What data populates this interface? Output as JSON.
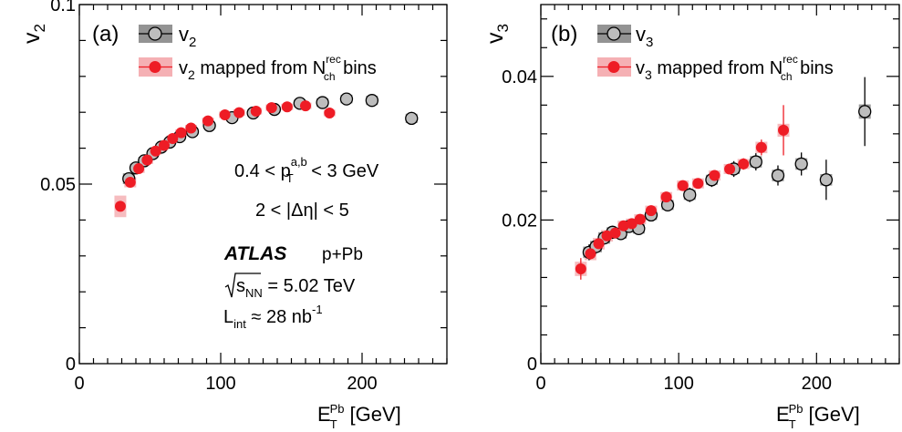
{
  "chart_data": [
    {
      "type": "scatter",
      "panel_label": "(a)",
      "ylabel": "v",
      "ylabel_sub": "2",
      "xlabel": "E",
      "xlabel_sup": "Pb",
      "xlabel_sub": "T",
      "xlabel_unit": "[GeV]",
      "xlim": [
        0,
        260
      ],
      "ylim": [
        0,
        0.1
      ],
      "xticks": [
        0,
        100,
        200
      ],
      "yticks": [
        0,
        0.05,
        0.1
      ],
      "ytick_labels": [
        "0",
        "0.05",
        "0.1"
      ],
      "legend": {
        "position": "top-left",
        "series1_main": "v",
        "series1_sub": "2",
        "series2_main": "v",
        "series2_sub": "2",
        "series2_text": " mapped from N",
        "series2_sup": "rec",
        "series2_sub2": "ch",
        "series2_tail": " bins"
      },
      "annotations": {
        "pt_prefix": "0.4 < p",
        "pt_sup": "a,b",
        "pt_sub": "T",
        "pt_suffix": " < 3 GeV",
        "eta_text": "2 < |Δη| < 5",
        "atlas": "ATLAS",
        "system": "p+Pb",
        "energy_sub": "NN",
        "energy_value": " = 5.02 TeV",
        "energy_var": "s",
        "lumi_prefix": "L",
        "lumi_sub": "int",
        "lumi_value": " ≈ 28 nb",
        "lumi_sup": "-1"
      },
      "series": [
        {
          "name": "v2",
          "marker": "open-circle",
          "color": "#000000",
          "band_color": "#808080",
          "points": [
            {
              "x": 35,
              "y": 0.0515,
              "err": 0.0012,
              "sys": 0.0015
            },
            {
              "x": 40,
              "y": 0.0545,
              "err": 0.001,
              "sys": 0.0012
            },
            {
              "x": 46,
              "y": 0.0565,
              "err": 0.0008,
              "sys": 0.0011
            },
            {
              "x": 52,
              "y": 0.0585,
              "err": 0.0008,
              "sys": 0.001
            },
            {
              "x": 58,
              "y": 0.0603,
              "err": 0.0007,
              "sys": 0.001
            },
            {
              "x": 64,
              "y": 0.0617,
              "err": 0.0007,
              "sys": 0.0009
            },
            {
              "x": 71,
              "y": 0.0632,
              "err": 0.0007,
              "sys": 0.0009
            },
            {
              "x": 80,
              "y": 0.0646,
              "err": 0.0007,
              "sys": 0.0009
            },
            {
              "x": 92,
              "y": 0.0663,
              "err": 0.0007,
              "sys": 0.0009
            },
            {
              "x": 108,
              "y": 0.0685,
              "err": 0.0007,
              "sys": 0.0009
            },
            {
              "x": 123,
              "y": 0.0698,
              "err": 0.0008,
              "sys": 0.0009
            },
            {
              "x": 138,
              "y": 0.0708,
              "err": 0.0008,
              "sys": 0.0009
            },
            {
              "x": 156,
              "y": 0.0725,
              "err": 0.0008,
              "sys": 0.001
            },
            {
              "x": 172,
              "y": 0.0727,
              "err": 0.001,
              "sys": 0.0012
            },
            {
              "x": 189,
              "y": 0.0737,
              "err": 0.0012,
              "sys": 0.0012
            },
            {
              "x": 207,
              "y": 0.0733,
              "err": 0.0013,
              "sys": 0.0013
            },
            {
              "x": 235,
              "y": 0.0683,
              "err": 0.0018,
              "sys": 0.0013
            }
          ]
        },
        {
          "name": "v2 mapped from Nch rec bins",
          "marker": "filled-circle",
          "color": "#ee1c25",
          "band_color": "#f5b0b4",
          "points": [
            {
              "x": 29,
              "y": 0.0438,
              "err": 0.0006,
              "sys": 0.003
            },
            {
              "x": 36,
              "y": 0.0505,
              "err": 0.0005,
              "sys": 0.0014
            },
            {
              "x": 42,
              "y": 0.0543,
              "err": 0.0005,
              "sys": 0.0012
            },
            {
              "x": 48,
              "y": 0.0567,
              "err": 0.0005,
              "sys": 0.0011
            },
            {
              "x": 54,
              "y": 0.0592,
              "err": 0.0005,
              "sys": 0.001
            },
            {
              "x": 60,
              "y": 0.0608,
              "err": 0.0005,
              "sys": 0.001
            },
            {
              "x": 66,
              "y": 0.0627,
              "err": 0.0005,
              "sys": 0.0009
            },
            {
              "x": 72,
              "y": 0.0643,
              "err": 0.0005,
              "sys": 0.0009
            },
            {
              "x": 79,
              "y": 0.0656,
              "err": 0.0005,
              "sys": 0.0009
            },
            {
              "x": 91,
              "y": 0.0676,
              "err": 0.0005,
              "sys": 0.0009
            },
            {
              "x": 103,
              "y": 0.0693,
              "err": 0.0005,
              "sys": 0.0009
            },
            {
              "x": 113,
              "y": 0.0699,
              "err": 0.0005,
              "sys": 0.0009
            },
            {
              "x": 125,
              "y": 0.0703,
              "err": 0.0005,
              "sys": 0.0009
            },
            {
              "x": 136,
              "y": 0.0713,
              "err": 0.0006,
              "sys": 0.0009
            },
            {
              "x": 147,
              "y": 0.0715,
              "err": 0.0006,
              "sys": 0.0009
            },
            {
              "x": 160,
              "y": 0.0718,
              "err": 0.0008,
              "sys": 0.0009
            },
            {
              "x": 177,
              "y": 0.0698,
              "err": 0.0009,
              "sys": 0.0009
            }
          ]
        }
      ]
    },
    {
      "type": "scatter",
      "panel_label": "(b)",
      "ylabel": "v",
      "ylabel_sub": "3",
      "xlabel": "E",
      "xlabel_sup": "Pb",
      "xlabel_sub": "T",
      "xlabel_unit": "[GeV]",
      "xlim": [
        0,
        260
      ],
      "ylim": [
        0,
        0.05
      ],
      "xticks": [
        0,
        100,
        200
      ],
      "yticks": [
        0,
        0.02,
        0.04
      ],
      "ytick_labels": [
        "0",
        "0.02",
        "0.04"
      ],
      "legend": {
        "position": "top-left",
        "series1_main": "v",
        "series1_sub": "3",
        "series2_main": "v",
        "series2_sub": "3",
        "series2_text": " mapped from N",
        "series2_sup": "rec",
        "series2_sub2": "ch",
        "series2_tail": " bins"
      },
      "series": [
        {
          "name": "v3",
          "marker": "open-circle",
          "color": "#000000",
          "band_color": "#808080",
          "points": [
            {
              "x": 35,
              "y": 0.0155,
              "err": 0.0011,
              "sys": 0.0008
            },
            {
              "x": 40,
              "y": 0.0163,
              "err": 0.001,
              "sys": 0.0008
            },
            {
              "x": 46,
              "y": 0.0175,
              "err": 0.0009,
              "sys": 0.0008
            },
            {
              "x": 52,
              "y": 0.0183,
              "err": 0.0009,
              "sys": 0.0007
            },
            {
              "x": 58,
              "y": 0.0181,
              "err": 0.0009,
              "sys": 0.0007
            },
            {
              "x": 64,
              "y": 0.0191,
              "err": 0.0009,
              "sys": 0.0007
            },
            {
              "x": 71,
              "y": 0.0188,
              "err": 0.0009,
              "sys": 0.0007
            },
            {
              "x": 80,
              "y": 0.0207,
              "err": 0.0009,
              "sys": 0.0007
            },
            {
              "x": 92,
              "y": 0.0221,
              "err": 0.0009,
              "sys": 0.0007
            },
            {
              "x": 108,
              "y": 0.0235,
              "err": 0.001,
              "sys": 0.0007
            },
            {
              "x": 124,
              "y": 0.0256,
              "err": 0.001,
              "sys": 0.0007
            },
            {
              "x": 140,
              "y": 0.0271,
              "err": 0.0011,
              "sys": 0.0007
            },
            {
              "x": 156,
              "y": 0.0281,
              "err": 0.0012,
              "sys": 0.0008
            },
            {
              "x": 172,
              "y": 0.0262,
              "err": 0.0014,
              "sys": 0.0008
            },
            {
              "x": 189,
              "y": 0.0278,
              "err": 0.0016,
              "sys": 0.0008
            },
            {
              "x": 207,
              "y": 0.0256,
              "err": 0.0028,
              "sys": 0.0008
            },
            {
              "x": 235,
              "y": 0.0351,
              "err": 0.0048,
              "sys": 0.001
            }
          ]
        },
        {
          "name": "v3 mapped from Nch rec bins",
          "marker": "filled-circle",
          "color": "#ee1c25",
          "band_color": "#f5b0b4",
          "points": [
            {
              "x": 29,
              "y": 0.0132,
              "err": 0.0015,
              "sys": 0.001
            },
            {
              "x": 36,
              "y": 0.0153,
              "err": 0.0008,
              "sys": 0.0009
            },
            {
              "x": 42,
              "y": 0.0167,
              "err": 0.0007,
              "sys": 0.0008
            },
            {
              "x": 48,
              "y": 0.0178,
              "err": 0.0007,
              "sys": 0.0008
            },
            {
              "x": 54,
              "y": 0.0182,
              "err": 0.0006,
              "sys": 0.0007
            },
            {
              "x": 60,
              "y": 0.0192,
              "err": 0.0006,
              "sys": 0.0007
            },
            {
              "x": 66,
              "y": 0.0195,
              "err": 0.0006,
              "sys": 0.0007
            },
            {
              "x": 72,
              "y": 0.0201,
              "err": 0.0006,
              "sys": 0.0007
            },
            {
              "x": 80,
              "y": 0.0213,
              "err": 0.0006,
              "sys": 0.0007
            },
            {
              "x": 91,
              "y": 0.0232,
              "err": 0.0006,
              "sys": 0.0007
            },
            {
              "x": 103,
              "y": 0.0248,
              "err": 0.0006,
              "sys": 0.0007
            },
            {
              "x": 114,
              "y": 0.0251,
              "err": 0.0006,
              "sys": 0.0007
            },
            {
              "x": 126,
              "y": 0.0262,
              "err": 0.0006,
              "sys": 0.0007
            },
            {
              "x": 137,
              "y": 0.0271,
              "err": 0.0007,
              "sys": 0.0007
            },
            {
              "x": 147,
              "y": 0.0278,
              "err": 0.0008,
              "sys": 0.0007
            },
            {
              "x": 160,
              "y": 0.0301,
              "err": 0.0011,
              "sys": 0.0008
            },
            {
              "x": 176,
              "y": 0.0325,
              "err": 0.0035,
              "sys": 0.0009
            }
          ]
        }
      ]
    }
  ]
}
